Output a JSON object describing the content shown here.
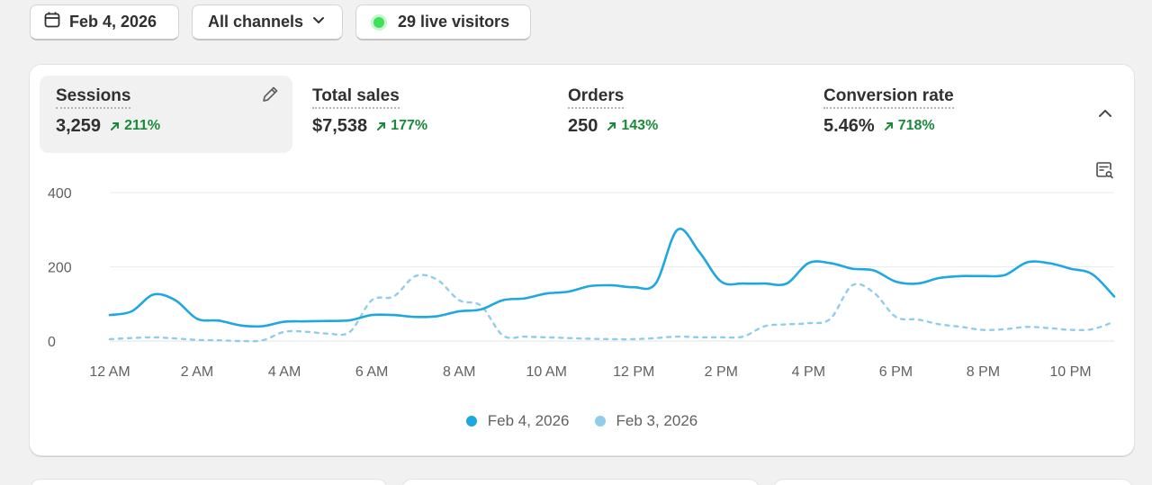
{
  "filters": {
    "date_label": "Feb 4, 2026",
    "channel_label": "All channels",
    "live_visitors_label": "29 live visitors"
  },
  "metrics": [
    {
      "title": "Sessions",
      "value": "3,259",
      "change": "211%"
    },
    {
      "title": "Total sales",
      "value": "$7,538",
      "change": "177%"
    },
    {
      "title": "Orders",
      "value": "250",
      "change": "143%"
    },
    {
      "title": "Conversion rate",
      "value": "5.46%",
      "change": "718%"
    }
  ],
  "colors": {
    "primary": "#1ea7e1",
    "comparison": "#8fcdea",
    "positive": "#1a8a3a",
    "live": "#3ee05a"
  },
  "chart_data": {
    "type": "line",
    "title": "Sessions",
    "x_tick_labels": [
      "12 AM",
      "2 AM",
      "4 AM",
      "6 AM",
      "8 AM",
      "10 AM",
      "12 PM",
      "2 PM",
      "4 PM",
      "6 PM",
      "8 PM",
      "10 PM"
    ],
    "y_tick_labels": [
      "0",
      "200",
      "400"
    ],
    "ylim": [
      0,
      400
    ],
    "xlim": [
      0,
      23
    ],
    "x": [
      0,
      0.5,
      1,
      1.5,
      2,
      2.5,
      3,
      3.5,
      4,
      4.5,
      5,
      5.5,
      6,
      6.5,
      7,
      7.5,
      8,
      8.5,
      9,
      9.5,
      10,
      10.5,
      11,
      11.5,
      12,
      12.5,
      13,
      13.5,
      14,
      14.5,
      15,
      15.5,
      16,
      16.5,
      17,
      17.5,
      18,
      18.5,
      19,
      19.5,
      20,
      20.5,
      21,
      21.5,
      22,
      22.5,
      23
    ],
    "series": [
      {
        "name": "Feb 4, 2026",
        "style": "solid",
        "values": [
          70,
          80,
          125,
          110,
          60,
          55,
          42,
          40,
          52,
          53,
          54,
          56,
          70,
          70,
          65,
          67,
          80,
          85,
          110,
          115,
          128,
          133,
          148,
          150,
          145,
          155,
          300,
          240,
          160,
          155,
          155,
          155,
          210,
          210,
          195,
          190,
          160,
          155,
          170,
          175,
          175,
          178,
          212,
          210,
          195,
          180,
          120
        ]
      },
      {
        "name": "Feb 3, 2026",
        "style": "dashed",
        "values": [
          5,
          8,
          10,
          7,
          3,
          2,
          0,
          2,
          25,
          25,
          20,
          25,
          110,
          120,
          175,
          165,
          110,
          95,
          15,
          12,
          10,
          8,
          6,
          5,
          5,
          8,
          12,
          10,
          10,
          12,
          40,
          45,
          48,
          60,
          150,
          130,
          65,
          58,
          45,
          38,
          30,
          32,
          38,
          35,
          30,
          32,
          52
        ]
      }
    ],
    "legend": [
      "Feb 4, 2026",
      "Feb 3, 2026"
    ],
    "grid": true
  }
}
